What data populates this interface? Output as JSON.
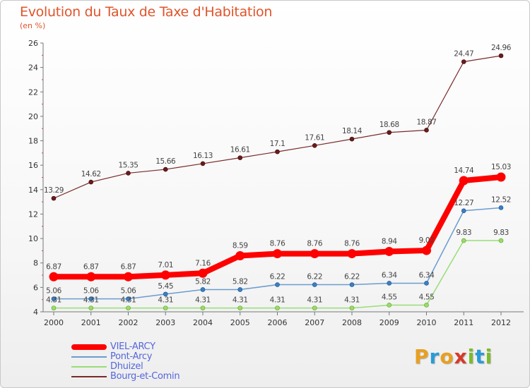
{
  "header": {
    "title": "Evolution du Taux de Taxe d'Habitation",
    "unit": "(en %)"
  },
  "logo": {
    "text": "Proxiti",
    "letters": [
      {
        "ch": "P",
        "color": "#e8a020"
      },
      {
        "ch": "r",
        "color": "#2a9bd6"
      },
      {
        "ch": "o",
        "color": "#e8a020"
      },
      {
        "ch": "x",
        "color": "#d63a2a"
      },
      {
        "ch": "i",
        "color": "#7dbb2a"
      },
      {
        "ch": "t",
        "color": "#2a9bd6"
      },
      {
        "ch": "i",
        "color": "#7dbb2a"
      }
    ]
  },
  "chart_data": {
    "type": "line",
    "title": "Evolution du Taux de Taxe d'Habitation",
    "ylabel": "(en %)",
    "xlabel": "",
    "x": [
      "2000",
      "2001",
      "2002",
      "2003",
      "2004",
      "2005",
      "2006",
      "2007",
      "2008",
      "2009",
      "2010",
      "2011",
      "2012"
    ],
    "ylim": [
      4,
      26
    ],
    "yticks": [
      "4",
      "6",
      "8",
      "10",
      "12",
      "14",
      "16",
      "18",
      "20",
      "22",
      "24",
      "26"
    ],
    "grid": false,
    "legend": "bottom-left",
    "series": [
      {
        "name": "VIEL-ARCY",
        "color": "#ff0000",
        "values": [
          6.87,
          6.87,
          6.87,
          7.01,
          7.16,
          8.59,
          8.76,
          8.76,
          8.76,
          8.94,
          9.02,
          14.74,
          15.03
        ],
        "labels": [
          "6.87",
          "6.87",
          "6.87",
          "7.01",
          "7.16",
          "8.59",
          "8.76",
          "8.76",
          "8.76",
          "8.94",
          "9.02",
          "14.74",
          "15.03"
        ]
      },
      {
        "name": "Pont-Arcy",
        "color": "#6b9ccf",
        "values": [
          5.06,
          5.06,
          5.06,
          5.45,
          5.82,
          5.82,
          6.22,
          6.22,
          6.22,
          6.34,
          6.34,
          12.27,
          12.52
        ],
        "labels": [
          "5.06",
          "5.06",
          "5.06",
          "5.45",
          "5.82",
          "5.82",
          "6.22",
          "6.22",
          "6.22",
          "6.34",
          "6.34",
          "12.27",
          "12.52"
        ]
      },
      {
        "name": "Dhuizel",
        "color": "#99dd77",
        "values": [
          4.31,
          4.31,
          4.31,
          4.31,
          4.31,
          4.31,
          4.31,
          4.31,
          4.31,
          4.55,
          4.55,
          9.83,
          9.83
        ],
        "labels": [
          "4.31",
          "4.31",
          "4.31",
          "4.31",
          "4.31",
          "4.31",
          "4.31",
          "4.31",
          "4.31",
          "4.55",
          "4.55",
          "9.83",
          "9.83"
        ]
      },
      {
        "name": "Bourg-et-Comin",
        "color": "#7a2a2a",
        "values": [
          13.29,
          14.62,
          15.35,
          15.66,
          16.13,
          16.61,
          17.1,
          17.61,
          18.14,
          18.68,
          18.87,
          24.47,
          24.96
        ],
        "labels": [
          "13.29",
          "14.62",
          "15.35",
          "15.66",
          "16.13",
          "16.61",
          "17.1",
          "17.61",
          "18.14",
          "18.68",
          "18.87",
          "24.47",
          "24.96"
        ]
      }
    ]
  }
}
